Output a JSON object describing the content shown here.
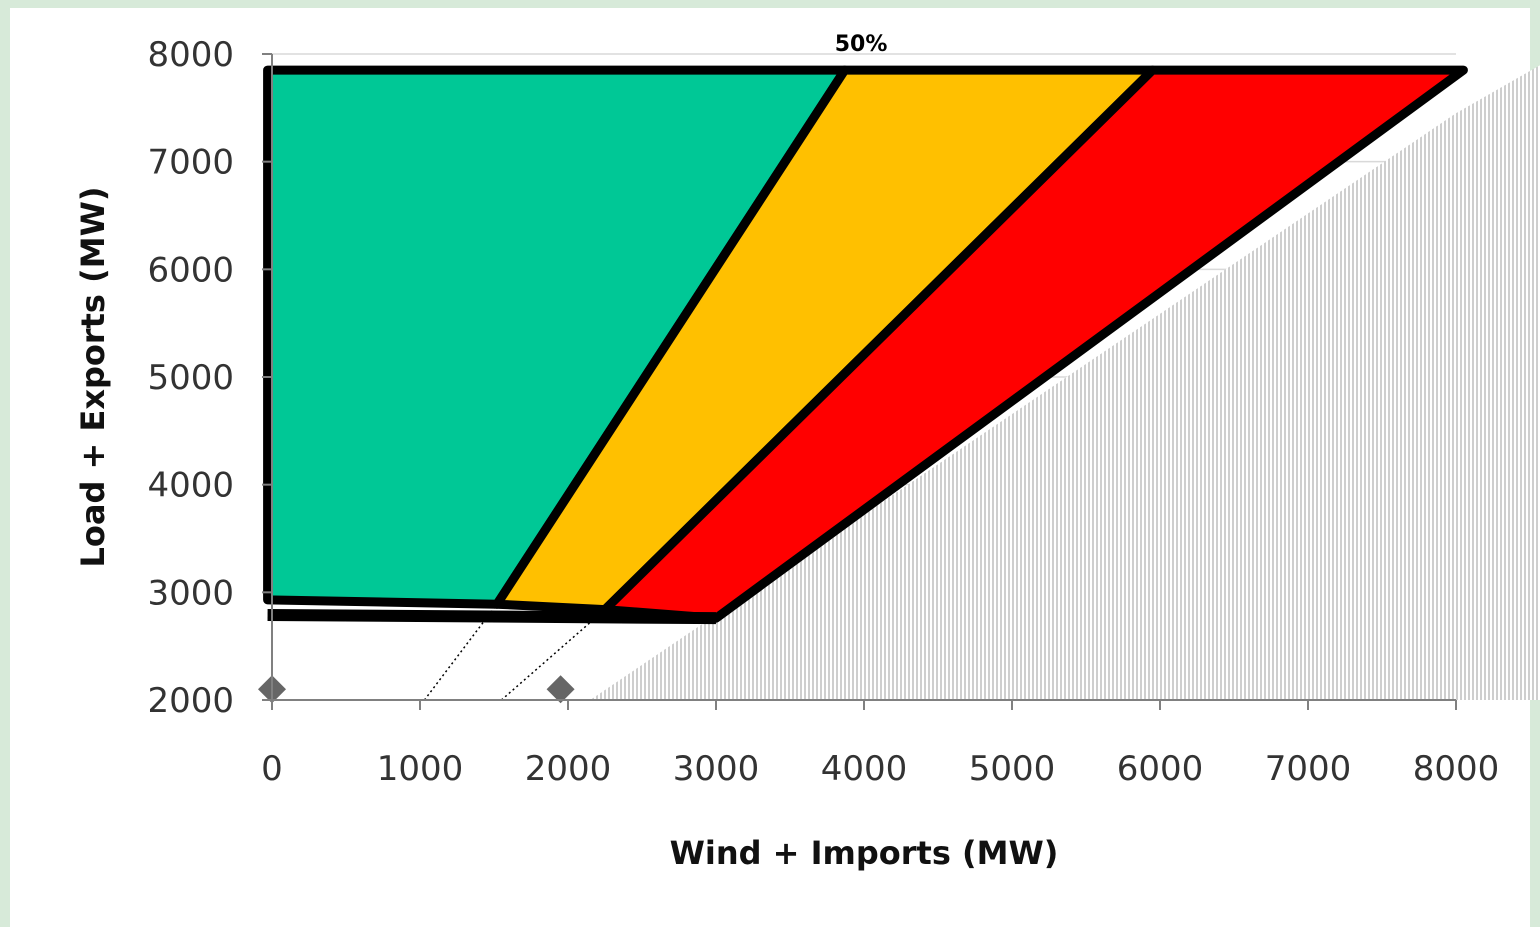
{
  "chart_data": {
    "type": "area",
    "title": "",
    "xlabel": "Wind + Imports (MW)",
    "ylabel": "Load + Exports (MW)",
    "xlim": [
      0,
      8000
    ],
    "ylim": [
      2000,
      8000
    ],
    "x_ticks": [
      "0",
      "1000",
      "2000",
      "3000",
      "4000",
      "5000",
      "6000",
      "7000",
      "8000"
    ],
    "y_ticks": [
      "2000",
      "3000",
      "4000",
      "5000",
      "6000",
      "7000",
      "8000"
    ],
    "grid": "horizontal",
    "legend": "none",
    "regions": [
      {
        "color": "#00c896",
        "polygon": [
          [
            -30,
            7850
          ],
          [
            3870,
            7850
          ],
          [
            1520,
            2890
          ],
          [
            -30,
            2930
          ]
        ]
      },
      {
        "color": "#ffc000",
        "polygon": [
          [
            3870,
            7850
          ],
          [
            5950,
            7850
          ],
          [
            2250,
            2840
          ],
          [
            1520,
            2890
          ]
        ]
      },
      {
        "color": "#ff0000",
        "polygon": [
          [
            5950,
            7850
          ],
          [
            8050,
            7850
          ],
          [
            3000,
            2760
          ],
          [
            2250,
            2840
          ]
        ]
      }
    ],
    "infeasible_region": {
      "color": "#bdbdbd",
      "polygon": [
        [
          2150,
          2000
        ],
        [
          8000,
          7450
        ],
        [
          8000,
          2000
        ]
      ]
    },
    "points": [
      [
        0,
        2100
      ],
      [
        1950,
        2100
      ]
    ],
    "dotted_lines": [
      [
        [
          1030,
          2000
        ],
        [
          1520,
          2890
        ]
      ],
      [
        [
          1550,
          2000
        ],
        [
          2250,
          2840
        ]
      ]
    ],
    "annotations": [
      {
        "text": "50%",
        "x": 3980,
        "y": 8030
      }
    ]
  },
  "colors": {
    "background": "#d7ead9",
    "plot_area": "#ffffff",
    "gridline": "#d9d9d9",
    "axis": "#808080",
    "marker": "#666666",
    "outline": "#000000"
  }
}
